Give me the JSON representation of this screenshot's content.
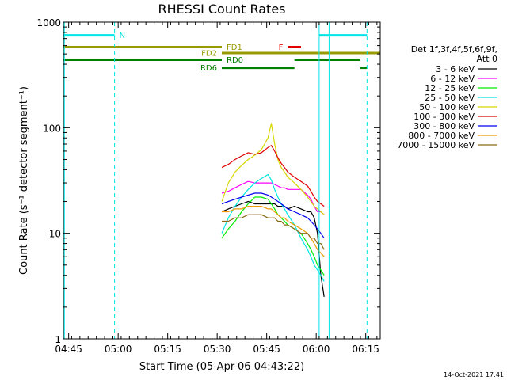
{
  "chart_data": {
    "type": "line",
    "title": "RHESSI Count Rates",
    "xlabel": "Start Time (05-Apr-06 04:43:22)",
    "ylabel": "Count Rate (s⁻¹ detector segment⁻¹)",
    "y_scale": "log",
    "ylim": [
      1,
      1000
    ],
    "xlim_minutes": [
      0,
      96
    ],
    "x_ticks": [
      {
        "label": "04:45",
        "minutes": 1.6
      },
      {
        "label": "05:00",
        "minutes": 16.6
      },
      {
        "label": "05:15",
        "minutes": 31.6
      },
      {
        "label": "05:30",
        "minutes": 46.6
      },
      {
        "label": "05:45",
        "minutes": 61.6
      },
      {
        "label": "06:00",
        "minutes": 76.6
      },
      {
        "label": "06:15",
        "minutes": 91.6
      }
    ],
    "y_ticks": [
      {
        "label": "1",
        "value": 1
      },
      {
        "label": "10",
        "value": 10
      },
      {
        "label": "100",
        "value": 100
      },
      {
        "label": "1000",
        "value": 1000
      }
    ],
    "legend": {
      "position": "right",
      "header": [
        "Det 1f,3f,4f,5f,6f,9f,",
        "Att 0"
      ],
      "entries": [
        {
          "name": "3 - 6 keV",
          "color": "#000000"
        },
        {
          "name": "6 - 12 keV",
          "color": "#ff00ff"
        },
        {
          "name": "12 - 25 keV",
          "color": "#00ee00"
        },
        {
          "name": "25 - 50 keV",
          "color": "#00e5e5"
        },
        {
          "name": "50 - 100 keV",
          "color": "#d6d600"
        },
        {
          "name": "100 - 300 keV",
          "color": "#e00000"
        },
        {
          "name": "300 - 800 keV",
          "color": "#0000ee"
        },
        {
          "name": "800 - 7000 keV",
          "color": "#ee9a00"
        },
        {
          "name": "7000 - 15000 keV",
          "color": "#8b6914"
        }
      ]
    },
    "flags": [
      {
        "name": "N",
        "color": "#00e5e5",
        "segments": [
          [
            0,
            15.5
          ],
          [
            77.5,
            92
          ]
        ],
        "level": 750
      },
      {
        "name": "F",
        "color": "#e00000",
        "segments": [
          [
            68,
            72
          ]
        ],
        "level": 580
      },
      {
        "name": "FD1",
        "color": "#999900",
        "segments": [
          [
            0,
            48
          ]
        ],
        "level": 580
      },
      {
        "name": "FD2",
        "color": "#999900",
        "segments": [
          [
            48,
            96
          ]
        ],
        "level": 510
      },
      {
        "name": "RD0",
        "color": "#007f00",
        "segments": [
          [
            0,
            48
          ],
          [
            70,
            90
          ]
        ],
        "level": 440
      },
      {
        "name": "RD6",
        "color": "#007f00",
        "segments": [
          [
            48,
            70
          ],
          [
            90,
            92
          ]
        ],
        "level": 370
      }
    ],
    "vertical_lines": [
      {
        "minutes": 0.3,
        "color": "#00e5e5",
        "style": "solid"
      },
      {
        "minutes": 15.5,
        "color": "#00e5e5",
        "style": "dashed"
      },
      {
        "minutes": 77.5,
        "color": "#00e5e5",
        "style": "solid"
      },
      {
        "minutes": 80.5,
        "color": "#00e5e5",
        "style": "solid"
      },
      {
        "minutes": 92,
        "color": "#00e5e5",
        "style": "dashed"
      }
    ],
    "x": [
      48,
      50,
      52,
      54,
      56,
      58,
      60,
      62,
      63,
      64,
      65,
      66,
      67,
      68,
      70,
      72,
      74,
      75,
      76,
      77,
      78,
      79
    ],
    "series": [
      {
        "name": "3 - 6 keV",
        "color": "#000000",
        "values": [
          16,
          17,
          18,
          19,
          20,
          19,
          19,
          19,
          19,
          19,
          18,
          18,
          18,
          17,
          18,
          17,
          16,
          16,
          14,
          10,
          4,
          2.5
        ]
      },
      {
        "name": "6 - 12 keV",
        "color": "#ff00ff",
        "values": [
          24,
          25,
          27,
          29,
          31,
          30,
          30,
          30,
          30,
          29,
          28,
          27,
          27,
          26,
          26,
          26,
          23,
          21,
          18,
          16,
          16,
          15
        ]
      },
      {
        "name": "12 - 25 keV",
        "color": "#00ee00",
        "values": [
          9,
          11,
          13,
          16,
          19,
          22,
          22,
          21,
          19,
          17,
          15,
          14,
          13,
          12,
          11,
          10,
          8,
          7,
          6,
          5,
          4.5,
          4
        ]
      },
      {
        "name": "25 - 50 keV",
        "color": "#00e5e5",
        "values": [
          10,
          14,
          18,
          22,
          26,
          30,
          33,
          36,
          32,
          26,
          22,
          19,
          17,
          15,
          12,
          9,
          7,
          6,
          5,
          4.5,
          4,
          3.5
        ]
      },
      {
        "name": "50 - 100 keV",
        "color": "#d6d600",
        "values": [
          20,
          30,
          38,
          44,
          50,
          55,
          62,
          80,
          110,
          70,
          50,
          42,
          38,
          34,
          30,
          26,
          22,
          20,
          18,
          17,
          16,
          15
        ]
      },
      {
        "name": "100 - 300 keV",
        "color": "#e00000",
        "values": [
          42,
          45,
          50,
          54,
          58,
          56,
          58,
          65,
          68,
          60,
          52,
          46,
          42,
          38,
          34,
          31,
          28,
          25,
          22,
          20,
          19,
          18
        ]
      },
      {
        "name": "300 - 800 keV",
        "color": "#0000ee",
        "values": [
          19,
          20,
          21,
          22,
          23,
          24,
          24,
          23,
          22,
          21,
          20,
          19,
          18,
          17,
          16,
          15,
          14,
          13,
          12,
          11,
          10,
          9
        ]
      },
      {
        "name": "800 - 7000 keV",
        "color": "#ee9a00",
        "values": [
          16,
          16,
          17,
          17,
          18,
          18,
          18,
          17,
          17,
          16,
          15,
          14,
          14,
          13,
          12,
          11,
          10,
          9,
          8,
          7,
          6.5,
          6
        ]
      },
      {
        "name": "7000 - 15000 keV",
        "color": "#8b6914",
        "values": [
          13,
          13,
          14,
          14,
          15,
          15,
          15,
          14,
          14,
          14,
          13,
          13,
          12,
          12,
          11,
          10,
          10,
          9,
          9,
          8,
          8,
          7
        ]
      }
    ]
  },
  "footer": {
    "timestamp": "14-Oct-2021 17:41"
  }
}
